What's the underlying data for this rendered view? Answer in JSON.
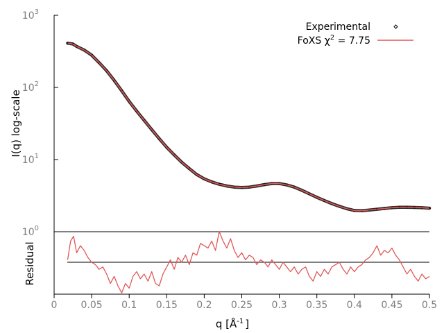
{
  "chart_data": {
    "type": "line",
    "xlabel": "q [Å",
    "xlabel_sup": "-1",
    "xlabel_end": "]",
    "ylabel_top": "I(q) log-scale",
    "ylabel_bottom": "Residual",
    "xlim": [
      0,
      0.5
    ],
    "ylim_top": [
      1,
      1000
    ],
    "y_scale_top": "log",
    "x_ticks": [
      "0",
      "0.05",
      "0.1",
      "0.15",
      "0.2",
      "0.25",
      "0.3",
      "0.35",
      "0.4",
      "0.45",
      "0.5"
    ],
    "x_tick_values": [
      0,
      0.05,
      0.1,
      0.15,
      0.2,
      0.25,
      0.3,
      0.35,
      0.4,
      0.45,
      0.5
    ],
    "y_ticks_top": [
      {
        "base": "10",
        "exp": "0",
        "value": 1
      },
      {
        "base": "10",
        "exp": "1",
        "value": 10
      },
      {
        "base": "10",
        "exp": "2",
        "value": 100
      },
      {
        "base": "10",
        "exp": "3",
        "value": 1000
      }
    ],
    "legend_placement": "top-right",
    "series": [
      {
        "name": "Experimental",
        "style": "points",
        "color": "#000000"
      },
      {
        "name": "FoXS χ",
        "name_sup": "2",
        "name_suffix": " = 7.75",
        "style": "line",
        "color": "#e05858"
      }
    ],
    "profile": {
      "x": [
        0.018,
        0.025,
        0.03,
        0.04,
        0.05,
        0.06,
        0.07,
        0.08,
        0.09,
        0.1,
        0.11,
        0.12,
        0.13,
        0.14,
        0.15,
        0.16,
        0.17,
        0.18,
        0.19,
        0.2,
        0.21,
        0.22,
        0.23,
        0.24,
        0.25,
        0.26,
        0.27,
        0.28,
        0.29,
        0.3,
        0.31,
        0.32,
        0.33,
        0.34,
        0.35,
        0.36,
        0.37,
        0.38,
        0.39,
        0.4,
        0.41,
        0.42,
        0.43,
        0.44,
        0.45,
        0.46,
        0.47,
        0.48,
        0.49,
        0.5
      ],
      "y": [
        410,
        400,
        370,
        330,
        280,
        220,
        170,
        125,
        90,
        64,
        47,
        35,
        26,
        19.5,
        14.8,
        11.6,
        9.2,
        7.5,
        6.2,
        5.4,
        4.9,
        4.55,
        4.3,
        4.15,
        4.1,
        4.15,
        4.3,
        4.5,
        4.65,
        4.65,
        4.45,
        4.15,
        3.75,
        3.35,
        3.0,
        2.7,
        2.45,
        2.25,
        2.08,
        1.97,
        1.95,
        2.0,
        2.05,
        2.1,
        2.15,
        2.18,
        2.18,
        2.17,
        2.15,
        2.12
      ]
    },
    "residual": {
      "x": [
        0.018,
        0.022,
        0.026,
        0.03,
        0.035,
        0.04,
        0.045,
        0.05,
        0.055,
        0.06,
        0.065,
        0.07,
        0.075,
        0.08,
        0.085,
        0.09,
        0.095,
        0.1,
        0.105,
        0.11,
        0.115,
        0.12,
        0.125,
        0.13,
        0.135,
        0.14,
        0.145,
        0.15,
        0.155,
        0.16,
        0.165,
        0.17,
        0.175,
        0.18,
        0.185,
        0.19,
        0.195,
        0.2,
        0.205,
        0.21,
        0.215,
        0.22,
        0.225,
        0.23,
        0.235,
        0.24,
        0.245,
        0.25,
        0.255,
        0.26,
        0.265,
        0.27,
        0.275,
        0.28,
        0.285,
        0.29,
        0.295,
        0.3,
        0.305,
        0.31,
        0.315,
        0.32,
        0.325,
        0.33,
        0.335,
        0.34,
        0.345,
        0.35,
        0.355,
        0.36,
        0.365,
        0.37,
        0.375,
        0.38,
        0.385,
        0.39,
        0.395,
        0.4,
        0.405,
        0.41,
        0.415,
        0.42,
        0.425,
        0.43,
        0.435,
        0.44,
        0.445,
        0.45,
        0.455,
        0.46,
        0.465,
        0.47,
        0.475,
        0.48,
        0.485,
        0.49,
        0.495,
        0.5
      ],
      "y": [
        0.1,
        0.9,
        1.1,
        0.4,
        0.7,
        0.5,
        0.2,
        0.0,
        -0.1,
        -0.3,
        -0.2,
        -0.5,
        -0.9,
        -0.6,
        -1.0,
        -1.3,
        -0.9,
        -1.1,
        -0.6,
        -0.4,
        -0.7,
        -0.5,
        -0.8,
        -0.4,
        -0.9,
        -1.0,
        -0.5,
        -0.2,
        0.1,
        -0.3,
        0.2,
        0.0,
        0.3,
        -0.1,
        0.4,
        0.3,
        0.8,
        0.7,
        0.6,
        0.9,
        0.5,
        1.3,
        0.9,
        0.6,
        1.0,
        0.5,
        0.2,
        0.4,
        0.1,
        0.3,
        0.2,
        -0.1,
        0.1,
        0.0,
        -0.2,
        0.1,
        -0.1,
        -0.3,
        0.0,
        -0.2,
        -0.4,
        -0.2,
        -0.5,
        -0.3,
        -0.2,
        -0.6,
        -0.8,
        -0.4,
        -0.6,
        -0.3,
        -0.5,
        -0.2,
        -0.1,
        0.0,
        -0.3,
        -0.5,
        -0.2,
        -0.4,
        -0.2,
        -0.1,
        0.1,
        0.2,
        0.4,
        0.7,
        0.3,
        0.5,
        0.4,
        0.6,
        0.3,
        0.1,
        -0.2,
        -0.5,
        -0.3,
        -0.6,
        -0.8,
        -0.5,
        -0.7,
        -0.6
      ]
    }
  }
}
